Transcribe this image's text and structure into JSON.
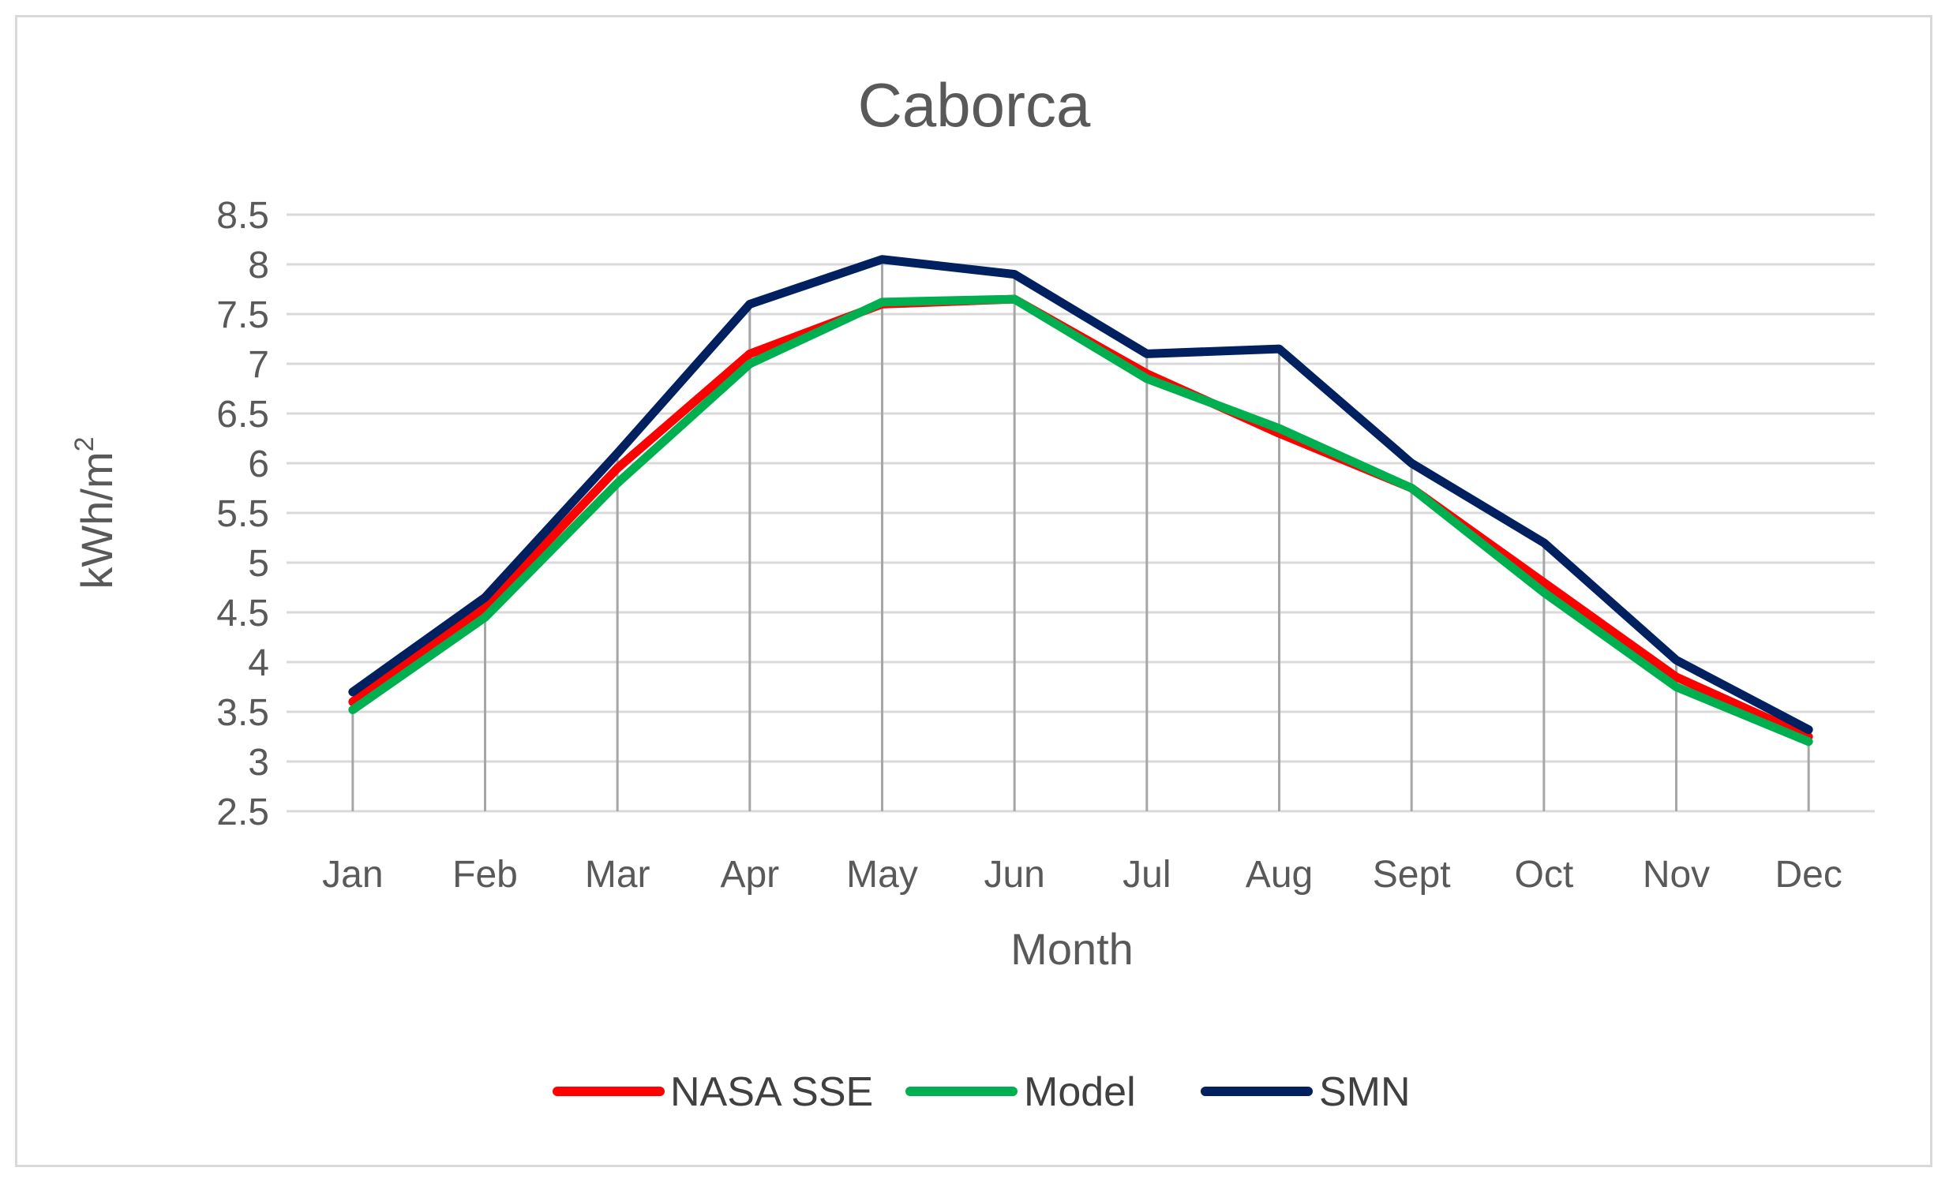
{
  "chart_data": {
    "type": "line",
    "title": "Caborca",
    "xlabel": "Month",
    "ylabel": "kWh/m",
    "ylabel_superscript": "2",
    "categories": [
      "Jan",
      "Feb",
      "Mar",
      "Apr",
      "May",
      "Jun",
      "Jul",
      "Aug",
      "Sept",
      "Oct",
      "Nov",
      "Dec"
    ],
    "ylim": [
      2.5,
      8.5
    ],
    "yticks": [
      "2.5",
      "3",
      "3.5",
      "4",
      "4.5",
      "5",
      "5.5",
      "6",
      "6.5",
      "7",
      "7.5",
      "8",
      "8.5"
    ],
    "grid": "horizontal",
    "drop_lines": true,
    "legend_position": "bottom",
    "series": [
      {
        "name": "NASA SSE",
        "color": "#ff0000",
        "values": [
          3.6,
          4.55,
          5.95,
          7.1,
          7.6,
          7.65,
          6.9,
          6.3,
          5.75,
          4.8,
          3.85,
          3.25
        ]
      },
      {
        "name": "Model",
        "color": "#00b050",
        "values": [
          3.52,
          4.45,
          5.8,
          7.0,
          7.62,
          7.65,
          6.85,
          6.35,
          5.75,
          4.7,
          3.75,
          3.2
        ]
      },
      {
        "name": "SMN",
        "color": "#002060",
        "values": [
          3.7,
          4.65,
          6.1,
          7.6,
          8.05,
          7.9,
          7.1,
          7.15,
          6.0,
          5.2,
          4.02,
          3.32
        ]
      }
    ]
  }
}
